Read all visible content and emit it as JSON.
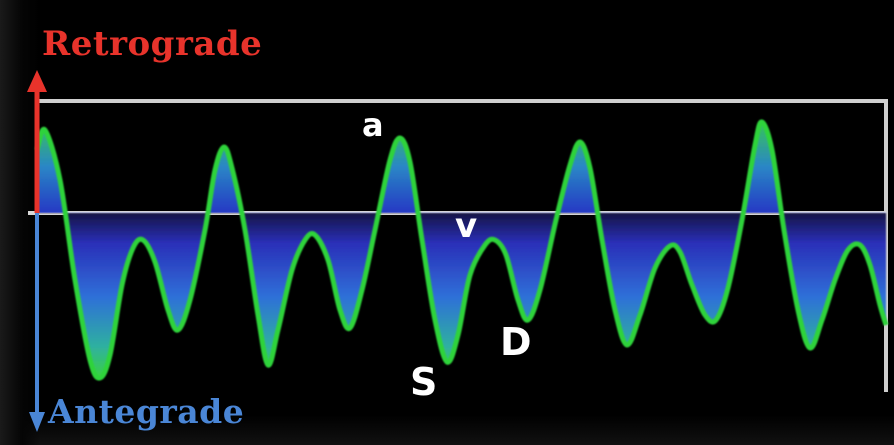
{
  "diagram": {
    "labels": {
      "retrograde": "Retrograde",
      "antegrade": "Antegrade",
      "wave_a": "a",
      "wave_v": "v",
      "wave_s": "S",
      "wave_d": "D"
    },
    "colors": {
      "background": "#000000",
      "retrograde": "#e8332b",
      "antegrade": "#4a86d6",
      "wave_line": "#2fd33a",
      "fill_deep": "#2a2fb8",
      "fill_mid": "#2f78d8",
      "grid_line": "#d8d8d8"
    },
    "icons": [
      "retrograde-arrow-up-icon",
      "antegrade-arrow-down-icon"
    ]
  }
}
